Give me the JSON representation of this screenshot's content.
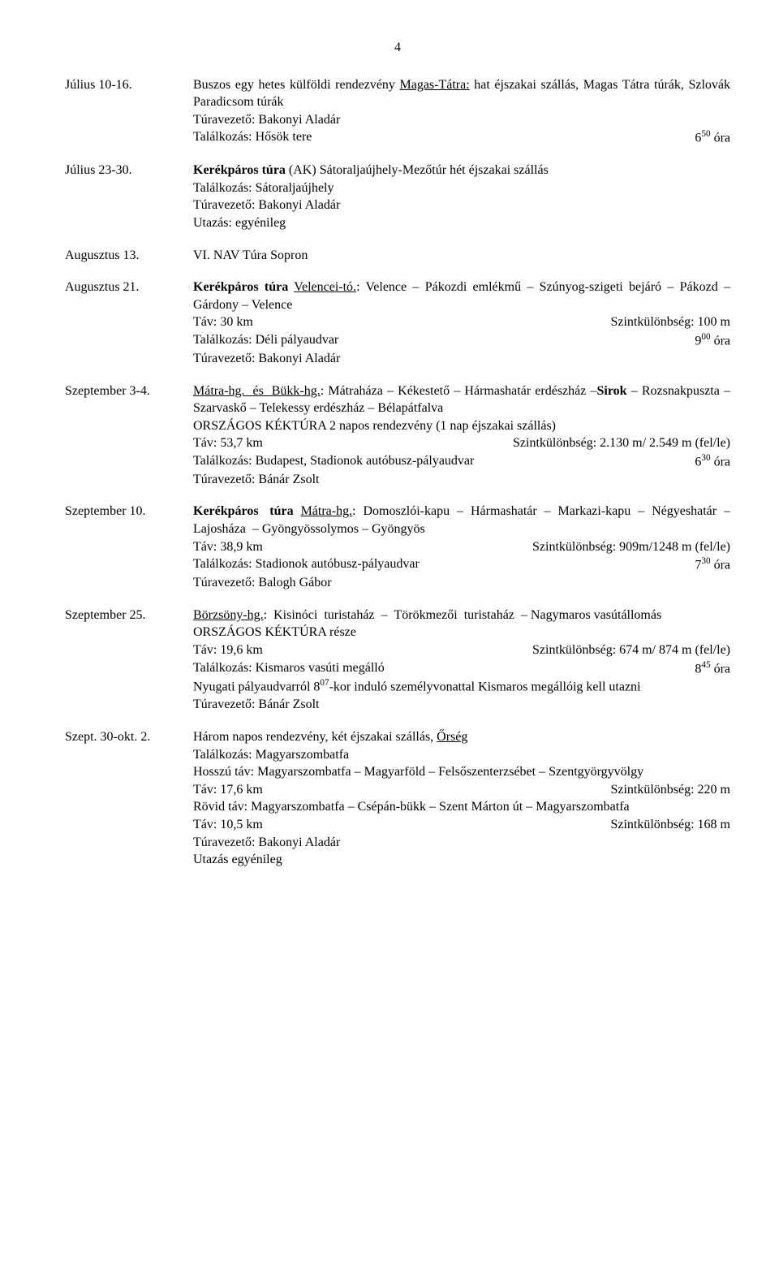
{
  "page_number": "4",
  "entries": [
    {
      "date": "Július 10-16.",
      "lines": [
        {
          "html": "Buszos egy hetes külföldi rendezvény <span class='underline'>Magas-Tátra:</span> hat éjszakai szállás, Magas Tátra túrák, Szlovák Paradicsom túrák"
        },
        {
          "html": "Túravezető: Bakonyi Aladár"
        },
        {
          "left": "Találkozás: Hősök tere",
          "right": "6<sup>50</sup> óra"
        }
      ]
    },
    {
      "date": "Július 23-30.",
      "lines": [
        {
          "html": "<span class='bold'>Kerékpáros túra</span> (AK) Sátoraljaújhely-Mezőtúr hét éjszakai szállás"
        },
        {
          "html": "Találkozás: Sátoraljaújhely"
        },
        {
          "html": "Túravezető: Bakonyi Aladár"
        },
        {
          "html": "Utazás: egyénileg"
        }
      ]
    },
    {
      "date": "Augusztus 13.",
      "lines": [
        {
          "html": "VI. NAV Túra Sopron"
        }
      ]
    },
    {
      "date": "Augusztus 21.",
      "lines": [
        {
          "html": "<span class='bold'>Kerékpáros túra</span> <span class='underline'>Velencei-tó.</span>: Velence – Pákozdi emlékmű – Szúnyog-szigeti bejáró – Pákozd – Gárdony – Velence"
        },
        {
          "left": "Táv: 30 km",
          "right": "Szintkülönbség: 100 m"
        },
        {
          "left": "Találkozás: Déli pályaudvar",
          "right": "9<sup>00</sup> óra"
        },
        {
          "html": "Túravezető: Bakonyi Aladár"
        }
      ]
    },
    {
      "date": "Szeptember 3-4.",
      "lines": [
        {
          "html": "<span class='underline spaced'>Mátra-hg. és Bükk-hg.</span>: Mátraháza – Kékestető – Hármashatár erdészház –<span class='bold'>Sirok</span> – Rozsnakpuszta – Szarvaskő – Telekessy erdészház – Bélapátfalva"
        },
        {
          "html": "ORSZÁGOS KÉKTÚRA 2 napos rendezvény (1 nap éjszakai szállás)"
        },
        {
          "left": "Táv: 53,7 km",
          "right": "Szintkülönbség: 2.130 m/ 2.549 m (fel/le)"
        },
        {
          "left": "Találkozás: Budapest, Stadionok autóbusz-pályaudvar",
          "right": "6<sup>30</sup> óra"
        },
        {
          "html": "Túravezető: Bánár Zsolt"
        }
      ]
    },
    {
      "date": "Szeptember 10.",
      "lines": [
        {
          "html": "<span class='bold spaced'>Kerékpáros túra</span> <span class='underline'>Mátra-hg.</span>: Domoszlói-kapu – Hármashatár – Markazi-kapu – Négyeshatár – Lajosháza &nbsp;– Gyöngyössolymos – Gyöngyös"
        },
        {
          "left": "Táv: 38,9 km",
          "right": "Szintkülönbség: 909m/1248 m (fel/le)"
        },
        {
          "left": "Találkozás: Stadionok autóbusz-pályaudvar",
          "right": "7<sup>30</sup> óra"
        },
        {
          "html": "Túravezető: Balogh Gábor"
        }
      ]
    },
    {
      "date": "Szeptember 25.",
      "lines": [
        {
          "html": "<span class='underline'>Börzsöny-hg.</span>: &nbsp;Kisinóci &nbsp;turistaház &nbsp;– &nbsp;Törökmezői &nbsp;turistaház &nbsp;– Nagymaros vasútállomás"
        },
        {
          "html": "ORSZÁGOS KÉKTÚRA része"
        },
        {
          "left": "Táv: 19,6 km",
          "right": "Szintkülönbség: 674 m/ 874 m (fel/le)"
        },
        {
          "left": "Találkozás: Kismaros vasúti megálló",
          "right": "8<sup>45</sup> óra"
        },
        {
          "html": "Nyugati pályaudvarról 8<sup>07</sup>-kor induló személyvonattal Kismaros megállóig kell utazni"
        },
        {
          "html": "Túravezető: Bánár Zsolt"
        }
      ]
    },
    {
      "date": "Szept. 30-okt. 2.",
      "lines": [
        {
          "html": "Három napos rendezvény, két éjszakai szállás, <span class='underline'>Őrség</span>"
        },
        {
          "html": "Találkozás: Magyarszombatfa"
        },
        {
          "html": "Hosszú táv: Magyarszombatfa – Magyarföld – Felsőszenterzsébet – Szentgyörgyvölgy"
        },
        {
          "left": "Táv: 17,6 km",
          "right": "Szintkülönbség: 220 m"
        },
        {
          "html": "Rövid táv: Magyarszombatfa – Csépán-bükk – Szent Márton út – Magyarszombatfa"
        },
        {
          "left": "Táv: 10,5 km",
          "right": "Szintkülönbség: 168 m"
        },
        {
          "html": "Túravezető: Bakonyi Aladár"
        },
        {
          "html": "Utazás egyénileg"
        }
      ]
    }
  ]
}
